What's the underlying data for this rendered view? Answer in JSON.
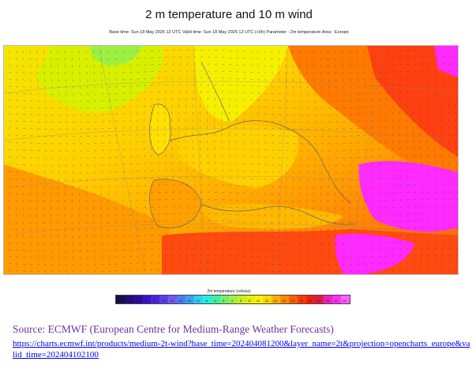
{
  "figure": {
    "title": "2 m temperature and 10 m wind",
    "subtitle": "Base time: Sun 18 May 2025 12 UTC Valid time: Sun 18 May 2025 12 UTC (+0h) Parameter : 2m temperature Area : Europe"
  },
  "legend": {
    "title": "2m temperature (celsius)",
    "ticks": [
      "-48",
      "-44",
      "-40",
      "-36",
      "-32",
      "-28",
      "-24",
      "-20",
      "-16",
      "-12",
      "-8",
      "-4",
      "0",
      "4",
      "8",
      "12",
      "16",
      "20",
      "24",
      "28",
      "32",
      "36",
      "40",
      "44",
      "48",
      "52",
      "56"
    ],
    "colors": [
      "#1a0b4d",
      "#220b78",
      "#2b0aa0",
      "#3a10c8",
      "#4b24e0",
      "#5c3df0",
      "#6e5cf6",
      "#4a7cf7",
      "#3aa0f5",
      "#2ed0f0",
      "#20f0e0",
      "#40f0a0",
      "#70f070",
      "#a0f040",
      "#c8f020",
      "#e8f000",
      "#fff000",
      "#ffd800",
      "#ffb000",
      "#ff8a00",
      "#ff6000",
      "#ff3a00",
      "#f01e10",
      "#e01a50",
      "#f020c0",
      "#ff30ff",
      "#ff60ff"
    ]
  },
  "map": {
    "palette": {
      "cool": "#b8f01a",
      "mild": "#f2f000",
      "warm": "#ffc800",
      "hot": "#ff8a00",
      "very_hot": "#ff4a10",
      "extreme": "#ff2aff"
    }
  },
  "source": {
    "line": "Source: ECMWF (European Centre for Medium-Range Weather Forecasts)",
    "url": "https://charts.ecmwf.int/products/medium-2t-wind?base_time=202404081200&layer_name=2t&projection=opencharts_europe&valid_time=202404102100"
  }
}
